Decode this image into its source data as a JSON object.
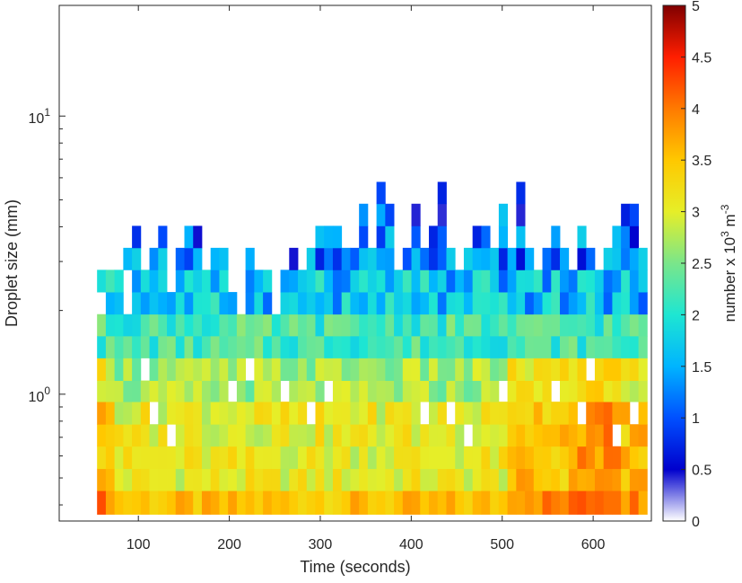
{
  "chart_data": {
    "type": "heatmap",
    "title": "",
    "xlabel": "Time (seconds)",
    "ylabel": "Droplet size (mm)",
    "xlim": [
      13,
      664
    ],
    "ylim": [
      0.35,
      25
    ],
    "y_scale": "log",
    "grid": false,
    "x_ticks": [
      100,
      200,
      300,
      400,
      500,
      600
    ],
    "y_ticks": [
      {
        "value": 1,
        "base": "10",
        "exp": "0"
      },
      {
        "value": 10,
        "base": "10",
        "exp": "1"
      }
    ],
    "colorbar": {
      "label_base": "number x 10",
      "label_exp1": "3",
      "label_mid": " m",
      "label_exp2": "-3",
      "range": [
        0,
        5
      ],
      "ticks": [
        "0",
        "0.5",
        "1",
        "1.5",
        "2",
        "2.5",
        "3",
        "3.5",
        "4",
        "4.5",
        "5"
      ],
      "colormap": "jet"
    },
    "time_bins": {
      "start": 45,
      "step": 9.6,
      "count": 64
    },
    "size_bins": [
      0.37,
      0.45,
      0.54,
      0.65,
      0.78,
      0.94,
      1.12,
      1.35,
      1.62,
      1.94,
      2.33,
      2.8,
      3.36,
      4.03,
      4.84,
      5.8,
      6.97
    ],
    "values": [
      "......................................................................................................................................................................................................................................................................................",
      "..............................................................................................................................................................................................................................................................................................",
      "......................................................................................................................................................................................................................................................................................................."
    ],
    "rows": [
      "....................................................................",
      "....................................................................",
      "......................................................................"
    ]
  }
}
